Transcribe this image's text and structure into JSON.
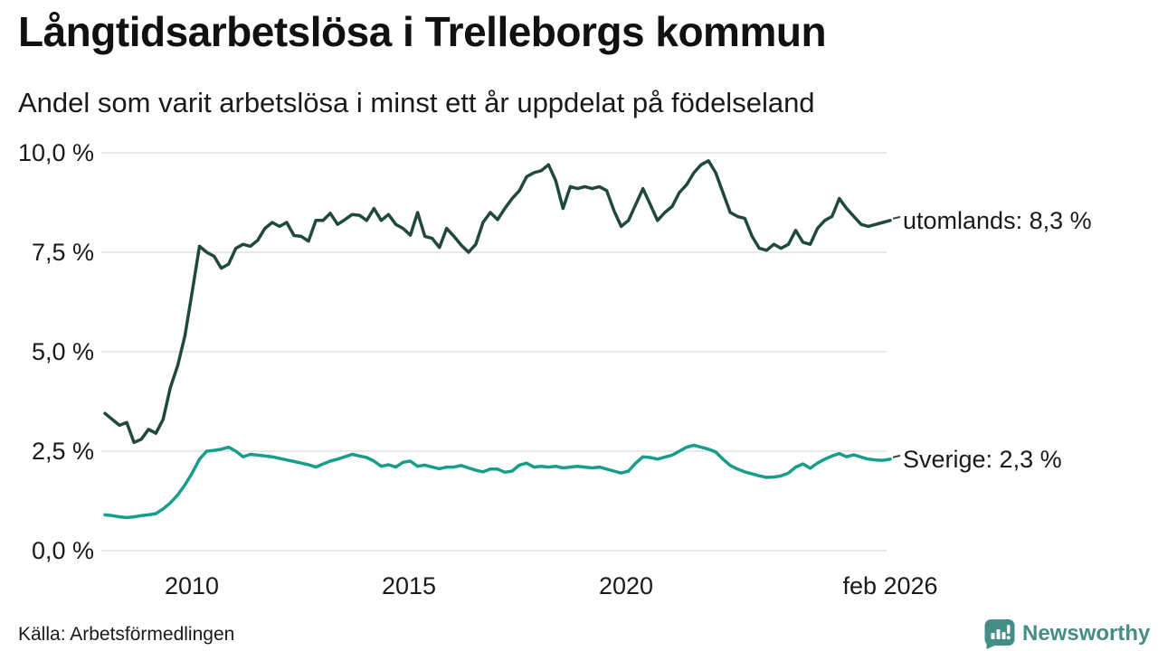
{
  "header": {
    "title": "Långtidsarbetslösa i Trelleborgs kommun",
    "subtitle": "Andel som varit arbetslösa i minst ett år uppdelat på födelseland"
  },
  "footer": {
    "source": "Källa: Arbetsförmedlingen",
    "brand_name": "Newsworthy",
    "brand_icon": "bar-chart-pin-icon"
  },
  "colors": {
    "utomlands_line": "#20493c",
    "sverige_line": "#179e8a",
    "grid": "#e0e0e0",
    "text": "#1a1a1a",
    "leader": "#3a3a3a",
    "brand": "#458e86",
    "background": "#ffffff"
  },
  "chart_data": {
    "type": "line",
    "title": "Långtidsarbetslösa i Trelleborgs kommun",
    "subtitle": "Andel som varit arbetslösa i minst ett år uppdelat på födelseland",
    "unit": "%",
    "grid": true,
    "legend_position": "end-of-line-labels",
    "x_axis": {
      "start": 2008.0,
      "end": 2026.083,
      "ticks": [
        {
          "value": 2010,
          "label": "2010"
        },
        {
          "value": 2015,
          "label": "2015"
        },
        {
          "value": 2020,
          "label": "2020"
        },
        {
          "value": 2026.083,
          "label": "feb 2026"
        }
      ]
    },
    "y_axis": {
      "min": 0,
      "max": 10,
      "ticks": [
        {
          "value": 10,
          "label": "10,0 %"
        },
        {
          "value": 7.5,
          "label": "7,5 %"
        },
        {
          "value": 5,
          "label": "5,0 %"
        },
        {
          "value": 2.5,
          "label": "2,5 %"
        },
        {
          "value": 0,
          "label": "0,0 %"
        }
      ]
    },
    "series": [
      {
        "name": "utomlands",
        "label": "utomlands: 8,3 %",
        "last_value": 8.3,
        "color": "#20493c",
        "values": [
          3.45,
          3.3,
          3.15,
          3.22,
          2.72,
          2.8,
          3.05,
          2.95,
          3.3,
          4.1,
          4.65,
          5.4,
          6.5,
          7.65,
          7.5,
          7.4,
          7.1,
          7.2,
          7.6,
          7.7,
          7.65,
          7.8,
          8.1,
          8.25,
          8.15,
          8.25,
          7.92,
          7.9,
          7.78,
          8.3,
          8.3,
          8.48,
          8.2,
          8.32,
          8.45,
          8.43,
          8.3,
          8.6,
          8.3,
          8.45,
          8.2,
          8.1,
          7.93,
          8.5,
          7.9,
          7.85,
          7.62,
          8.1,
          7.9,
          7.68,
          7.5,
          7.7,
          8.25,
          8.5,
          8.32,
          8.6,
          8.85,
          9.05,
          9.4,
          9.5,
          9.55,
          9.7,
          9.3,
          8.6,
          9.15,
          9.1,
          9.15,
          9.1,
          9.15,
          9.05,
          8.55,
          8.15,
          8.3,
          8.7,
          9.1,
          8.7,
          8.3,
          8.5,
          8.65,
          9.0,
          9.2,
          9.5,
          9.7,
          9.8,
          9.5,
          9.0,
          8.5,
          8.4,
          8.35,
          7.9,
          7.6,
          7.55,
          7.7,
          7.6,
          7.7,
          8.05,
          7.75,
          7.7,
          8.1,
          8.3,
          8.4,
          8.85,
          8.6,
          8.4,
          8.2,
          8.15,
          8.2,
          8.25,
          8.3
        ]
      },
      {
        "name": "sverige",
        "label": "Sverige: 2,3 %",
        "last_value": 2.3,
        "color": "#179e8a",
        "values": [
          0.9,
          0.88,
          0.85,
          0.83,
          0.85,
          0.88,
          0.9,
          0.93,
          1.05,
          1.2,
          1.4,
          1.65,
          1.95,
          2.3,
          2.5,
          2.52,
          2.55,
          2.6,
          2.5,
          2.36,
          2.42,
          2.4,
          2.38,
          2.36,
          2.32,
          2.28,
          2.24,
          2.2,
          2.16,
          2.1,
          2.18,
          2.25,
          2.3,
          2.36,
          2.42,
          2.38,
          2.34,
          2.25,
          2.12,
          2.16,
          2.1,
          2.22,
          2.25,
          2.12,
          2.15,
          2.1,
          2.06,
          2.1,
          2.1,
          2.14,
          2.08,
          2.02,
          1.98,
          2.05,
          2.05,
          1.97,
          2.0,
          2.15,
          2.2,
          2.1,
          2.12,
          2.1,
          2.12,
          2.08,
          2.1,
          2.12,
          2.1,
          2.08,
          2.1,
          2.05,
          2.0,
          1.95,
          2.0,
          2.2,
          2.36,
          2.34,
          2.3,
          2.35,
          2.4,
          2.5,
          2.6,
          2.65,
          2.6,
          2.55,
          2.48,
          2.3,
          2.14,
          2.05,
          1.98,
          1.93,
          1.88,
          1.84,
          1.85,
          1.88,
          1.95,
          2.1,
          2.18,
          2.07,
          2.2,
          2.3,
          2.38,
          2.44,
          2.36,
          2.41,
          2.35,
          2.3,
          2.28,
          2.27,
          2.3
        ]
      }
    ]
  }
}
